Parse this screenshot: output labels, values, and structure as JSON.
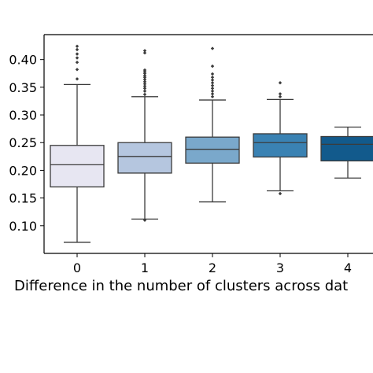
{
  "chart_data": {
    "type": "box",
    "xlabel": "Difference in the number of clusters across dat",
    "categories": [
      "0",
      "1",
      "2",
      "3",
      "4"
    ],
    "ylim": [
      0.05,
      0.445
    ],
    "yticks": [
      "0.10",
      "0.15",
      "0.20",
      "0.25",
      "0.30",
      "0.35",
      "0.40"
    ],
    "grid": false,
    "boxes": [
      {
        "category": "0",
        "color": "#e7e6f2",
        "whisker_low": 0.07,
        "q1": 0.17,
        "median": 0.21,
        "q3": 0.245,
        "whisker_high": 0.355,
        "outliers": [
          0.365,
          0.382,
          0.395,
          0.403,
          0.41,
          0.418,
          0.424
        ]
      },
      {
        "category": "1",
        "color": "#b5c6df",
        "whisker_low": 0.112,
        "q1": 0.195,
        "median": 0.225,
        "q3": 0.25,
        "whisker_high": 0.333,
        "outliers": [
          0.11,
          0.337,
          0.343,
          0.348,
          0.352,
          0.356,
          0.36,
          0.364,
          0.368,
          0.371,
          0.375,
          0.378,
          0.381,
          0.412,
          0.416
        ]
      },
      {
        "category": "2",
        "color": "#7aa8cb",
        "whisker_low": 0.143,
        "q1": 0.213,
        "median": 0.238,
        "q3": 0.26,
        "whisker_high": 0.327,
        "outliers": [
          0.333,
          0.338,
          0.343,
          0.348,
          0.353,
          0.358,
          0.363,
          0.368,
          0.374,
          0.388,
          0.42
        ]
      },
      {
        "category": "3",
        "color": "#3a82b3",
        "whisker_low": 0.163,
        "q1": 0.224,
        "median": 0.25,
        "q3": 0.266,
        "whisker_high": 0.328,
        "outliers": [
          0.158,
          0.333,
          0.338,
          0.358
        ]
      },
      {
        "category": "4",
        "color": "#125a8c",
        "whisker_low": 0.186,
        "q1": 0.217,
        "median": 0.247,
        "q3": 0.261,
        "whisker_high": 0.278,
        "outliers": []
      }
    ]
  }
}
